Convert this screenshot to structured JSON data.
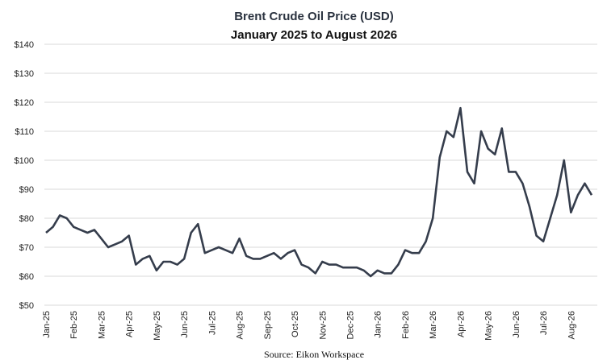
{
  "chart_data": {
    "type": "line",
    "title": "Brent Crude Oil Price (USD)",
    "subtitle": "January 2025 to August 2026",
    "source": "Source: Eikon Workspace",
    "categories": [
      "Jan-25",
      null,
      null,
      null,
      "Feb-25",
      null,
      null,
      null,
      "Mar-25",
      null,
      null,
      null,
      "Apr-25",
      null,
      null,
      null,
      "May-25",
      null,
      null,
      null,
      "Jun-25",
      null,
      null,
      null,
      "Jul-25",
      null,
      null,
      null,
      "Aug-25",
      null,
      null,
      null,
      "Sep-25",
      null,
      null,
      null,
      "Oct-25",
      null,
      null,
      null,
      "Nov-25",
      null,
      null,
      null,
      "Dec-25",
      null,
      null,
      null,
      "Jan-26",
      null,
      null,
      null,
      "Feb-26",
      null,
      null,
      null,
      "Mar-26",
      null,
      null,
      null,
      "Apr-26",
      null,
      null,
      null,
      "May-26",
      null,
      null,
      null,
      "Jun-26",
      null,
      null,
      null,
      "Jul-26",
      null,
      null,
      null,
      "Aug-26",
      null,
      null,
      null
    ],
    "series": [
      {
        "name": "Brent",
        "color": "#353d4c",
        "values": [
          75,
          77,
          81,
          80,
          77,
          76,
          75,
          76,
          73,
          70,
          71,
          72,
          74,
          64,
          66,
          67,
          62,
          65,
          65,
          64,
          66,
          75,
          78,
          68,
          69,
          70,
          69,
          68,
          73,
          67,
          66,
          66,
          67,
          68,
          66,
          68,
          69,
          64,
          63,
          61,
          65,
          64,
          64,
          63,
          63,
          63,
          62,
          60,
          62,
          61,
          61,
          64,
          69,
          68,
          68,
          72,
          80,
          101,
          110,
          108,
          118,
          96,
          92,
          110,
          104,
          102,
          111,
          96,
          96,
          92,
          84,
          74,
          72,
          80,
          88,
          100,
          82,
          88,
          92,
          88
        ]
      }
    ],
    "ylim": [
      50,
      140
    ],
    "yticks": [
      {
        "value": 50,
        "label": "$50"
      },
      {
        "value": 60,
        "label": "$60"
      },
      {
        "value": 70,
        "label": "$70"
      },
      {
        "value": 80,
        "label": "$80"
      },
      {
        "value": 90,
        "label": "$90"
      },
      {
        "value": 100,
        "label": "$100"
      },
      {
        "value": 110,
        "label": "$110"
      },
      {
        "value": 120,
        "label": "$120"
      },
      {
        "value": 130,
        "label": "$130"
      },
      {
        "value": 140,
        "label": "$140"
      }
    ],
    "grid": true
  }
}
